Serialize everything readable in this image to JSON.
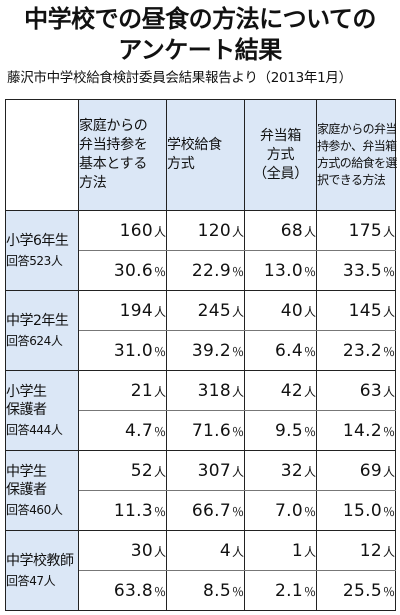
{
  "title_lines": [
    "中学校での昼食の方法についての",
    "アンケート結果"
  ],
  "source": "藤沢市中学校給食検討委員会結果報告より（2013年1月）",
  "columns": [
    {
      "lines": [
        "家庭からの",
        "弁当持参を",
        "基本とする",
        "方法"
      ]
    },
    {
      "lines": [
        "学校給食",
        "方式"
      ]
    },
    {
      "lines": [
        "弁当箱",
        "方式",
        "（全員）"
      ]
    },
    {
      "lines": [
        "家庭からの弁当",
        "持参か、弁当箱",
        "方式の給食を選",
        "択できる方法"
      ]
    }
  ],
  "count_unit": "人",
  "pct_unit": "％",
  "rows": [
    {
      "label_lines": [
        "小学6年生"
      ],
      "respondents": "回答523人",
      "counts": [
        "160",
        "120",
        "68",
        "175"
      ],
      "percents": [
        "30.6",
        "22.9",
        "13.0",
        "33.5"
      ]
    },
    {
      "label_lines": [
        "中学2年生"
      ],
      "respondents": "回答624人",
      "counts": [
        "194",
        "245",
        "40",
        "145"
      ],
      "percents": [
        "31.0",
        "39.2",
        "6.4",
        "23.2"
      ]
    },
    {
      "label_lines": [
        "小学生",
        "保護者"
      ],
      "respondents": "回答444人",
      "counts": [
        "21",
        "318",
        "42",
        "63"
      ],
      "percents": [
        "4.7",
        "71.6",
        "9.5",
        "14.2"
      ]
    },
    {
      "label_lines": [
        "中学生",
        "保護者"
      ],
      "respondents": "回答460人",
      "counts": [
        "52",
        "307",
        "32",
        "69"
      ],
      "percents": [
        "11.3",
        "66.7",
        "7.0",
        "15.0"
      ]
    },
    {
      "label_lines": [
        "中学校教師"
      ],
      "respondents": "回答47人",
      "counts": [
        "30",
        "4",
        "1",
        "12"
      ],
      "percents": [
        "63.8",
        "8.5",
        "2.1",
        "25.5"
      ]
    }
  ]
}
